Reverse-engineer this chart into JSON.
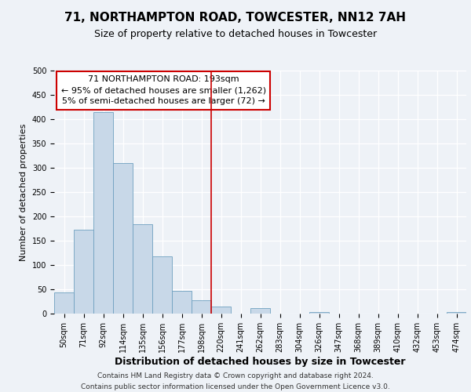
{
  "title": "71, NORTHAMPTON ROAD, TOWCESTER, NN12 7AH",
  "subtitle": "Size of property relative to detached houses in Towcester",
  "xlabel": "Distribution of detached houses by size in Towcester",
  "ylabel": "Number of detached properties",
  "bar_labels": [
    "50sqm",
    "71sqm",
    "92sqm",
    "114sqm",
    "135sqm",
    "156sqm",
    "177sqm",
    "198sqm",
    "220sqm",
    "241sqm",
    "262sqm",
    "283sqm",
    "304sqm",
    "326sqm",
    "347sqm",
    "368sqm",
    "389sqm",
    "410sqm",
    "432sqm",
    "453sqm",
    "474sqm"
  ],
  "bar_values": [
    44,
    172,
    415,
    309,
    184,
    118,
    46,
    28,
    14,
    0,
    12,
    0,
    0,
    4,
    0,
    0,
    0,
    0,
    0,
    0,
    3
  ],
  "bar_color": "#c8d8e8",
  "bar_edgecolor": "#6fa0c0",
  "vline_x": 7.5,
  "vline_color": "#cc0000",
  "annotation_line1": "71 NORTHAMPTON ROAD: 193sqm",
  "annotation_line2": "← 95% of detached houses are smaller (1,262)",
  "annotation_line3": "5% of semi-detached houses are larger (72) →",
  "annotation_box_edgecolor": "#cc0000",
  "ylim": [
    0,
    500
  ],
  "yticks": [
    0,
    50,
    100,
    150,
    200,
    250,
    300,
    350,
    400,
    450,
    500
  ],
  "footer_line1": "Contains HM Land Registry data © Crown copyright and database right 2024.",
  "footer_line2": "Contains public sector information licensed under the Open Government Licence v3.0.",
  "background_color": "#eef2f7",
  "plot_background": "#eef2f7",
  "grid_color": "#ffffff",
  "title_fontsize": 11,
  "subtitle_fontsize": 9,
  "xlabel_fontsize": 9,
  "ylabel_fontsize": 8,
  "tick_fontsize": 7,
  "annotation_fontsize": 8,
  "footer_fontsize": 6.5
}
